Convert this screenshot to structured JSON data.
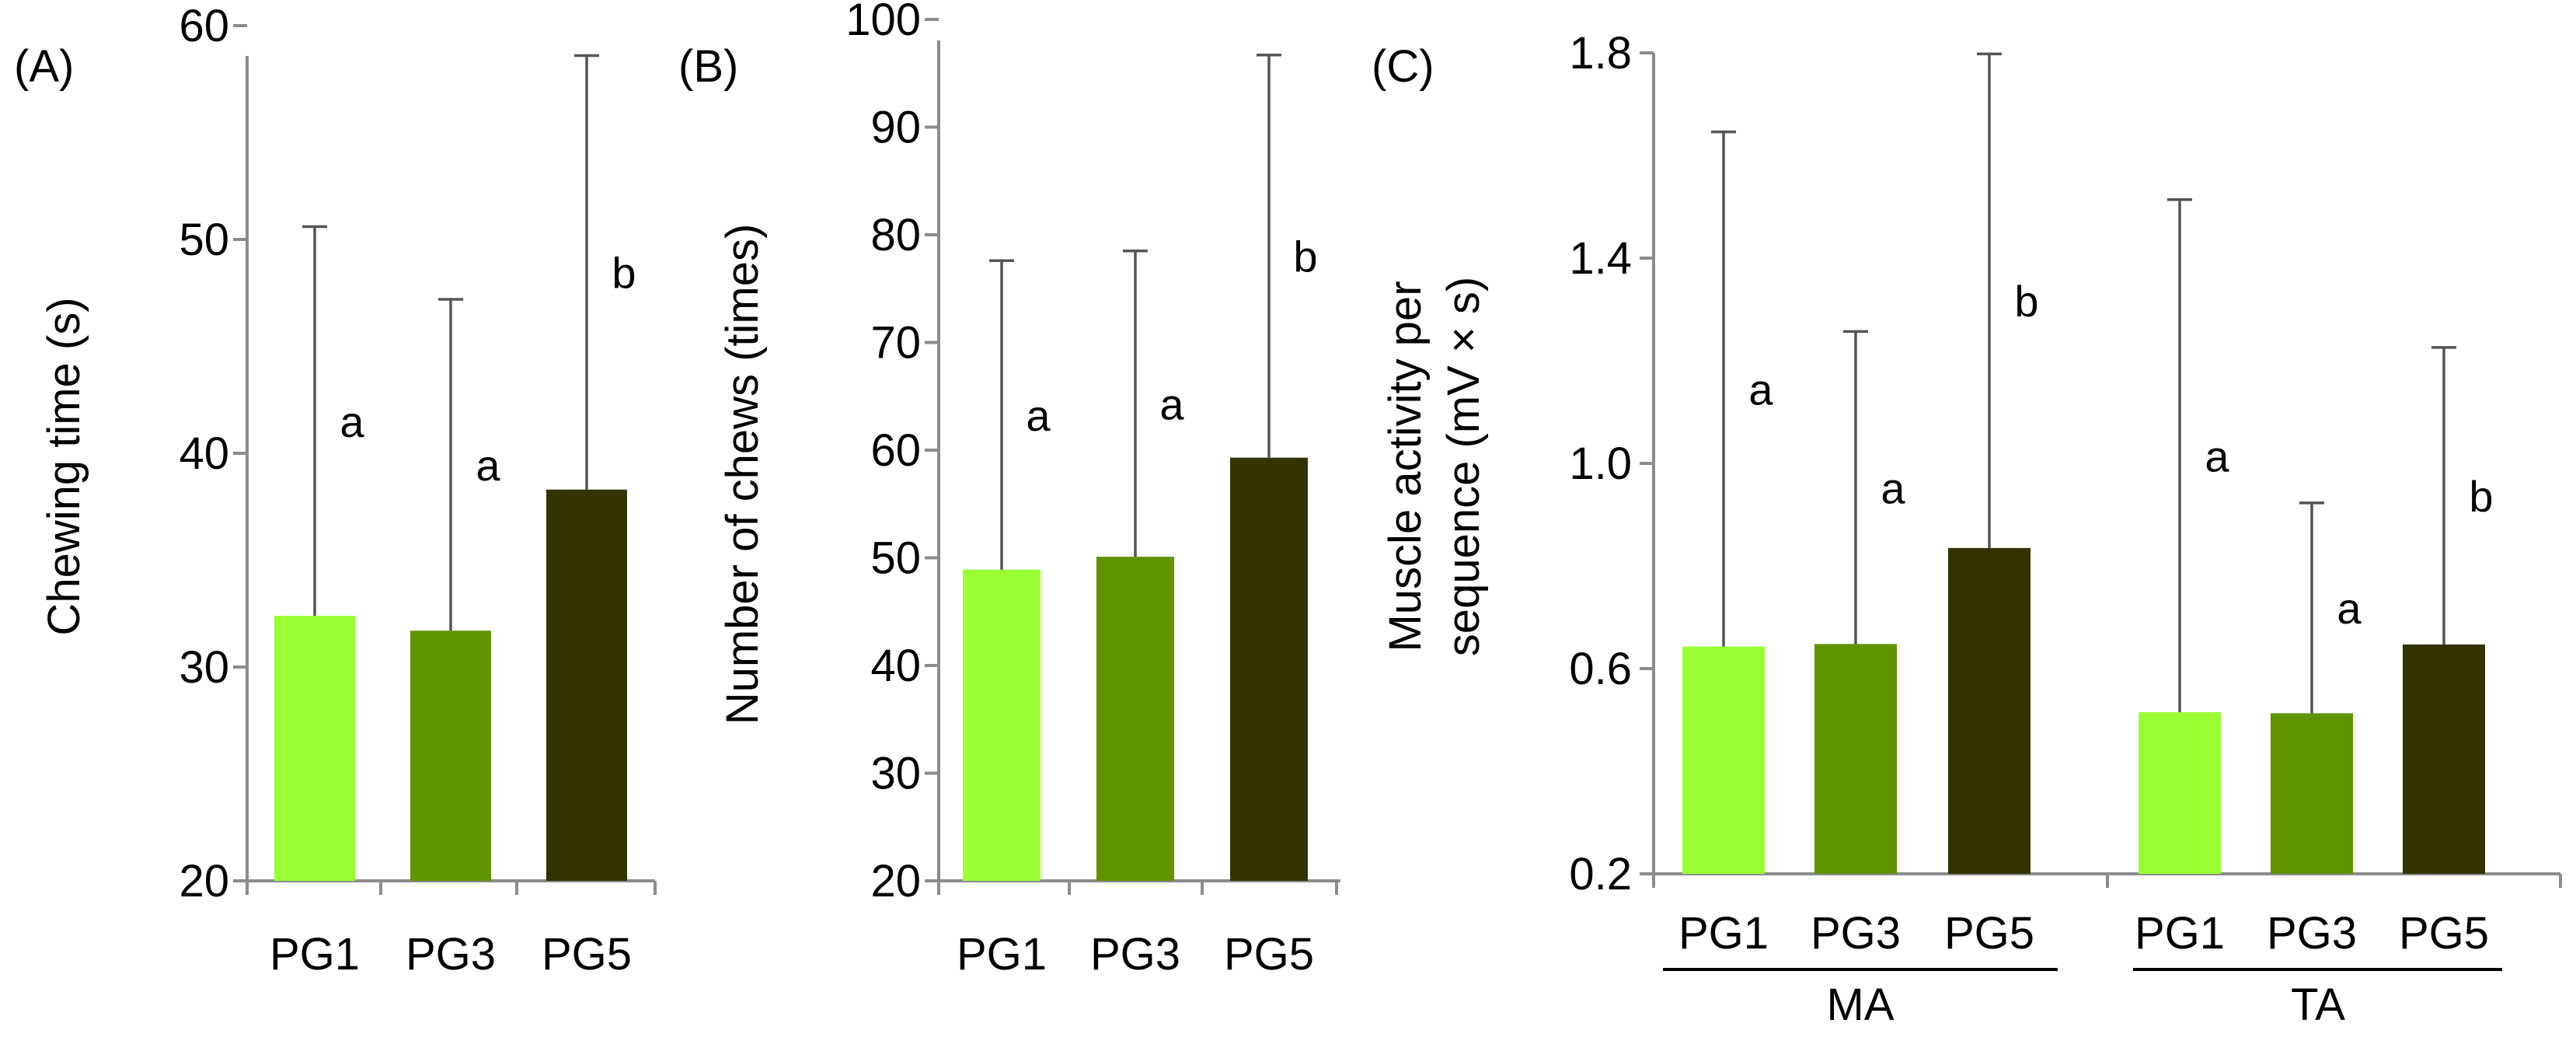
{
  "chart_data": [
    {
      "id": "A",
      "type": "bar",
      "panel_label": "(A)",
      "ylabel": "Chewing time (s)",
      "xlabel": "",
      "ylim": [
        20,
        60
      ],
      "yticks": [
        20,
        30,
        40,
        50,
        60
      ],
      "ytick_labels": [
        "20",
        "30",
        "40",
        "50",
        "60"
      ],
      "categories": [
        "PG1",
        "PG3",
        "PG5"
      ],
      "values": [
        32.4,
        31.7,
        38.3
      ],
      "errors": [
        18.2,
        15.5,
        20.3
      ],
      "significance": [
        "a",
        "a",
        "b"
      ],
      "colors": [
        "#99ff33",
        "#5f9300",
        "#333300"
      ]
    },
    {
      "id": "B",
      "type": "bar",
      "panel_label": "(B)",
      "ylabel": "Number of chews (times)",
      "xlabel": "",
      "ylim": [
        20,
        100
      ],
      "yticks": [
        20,
        30,
        40,
        50,
        60,
        70,
        80,
        90,
        100
      ],
      "ytick_labels": [
        "20",
        "30",
        "40",
        "50",
        "60",
        "70",
        "80",
        "90",
        "100"
      ],
      "categories": [
        "PG1",
        "PG3",
        "PG5"
      ],
      "values": [
        48.9,
        50.1,
        59.3
      ],
      "errors": [
        28.7,
        28.4,
        37.4
      ],
      "significance": [
        "a",
        "a",
        "b"
      ],
      "colors": [
        "#99ff33",
        "#5f9300",
        "#333300"
      ]
    },
    {
      "id": "C",
      "type": "bar",
      "panel_label": "(C)",
      "ylabel": "Muscle activity per sequence (mV × s)",
      "ylabel_lines": [
        "Muscle activity per",
        "sequence (mV × s)"
      ],
      "xlabel": "",
      "ylim": [
        0.2,
        1.8
      ],
      "yticks": [
        0.2,
        0.6,
        1.0,
        1.4,
        1.8
      ],
      "ytick_labels": [
        "0.2",
        "0.6",
        "1.0",
        "1.4",
        "1.8"
      ],
      "groups": [
        "MA",
        "TA"
      ],
      "categories": [
        "PG1",
        "PG3",
        "PG5"
      ],
      "series": [
        {
          "name": "MA",
          "values": [
            0.643,
            0.648,
            0.835
          ],
          "errors": [
            1.003,
            0.609,
            0.963
          ],
          "significance": [
            "a",
            "a",
            "b"
          ]
        },
        {
          "name": "TA",
          "values": [
            0.515,
            0.513,
            0.647
          ],
          "errors": [
            0.999,
            0.41,
            0.579
          ],
          "significance": [
            "a",
            "a",
            "b"
          ]
        }
      ],
      "colors": [
        "#99ff33",
        "#5f9300",
        "#333300"
      ]
    }
  ]
}
